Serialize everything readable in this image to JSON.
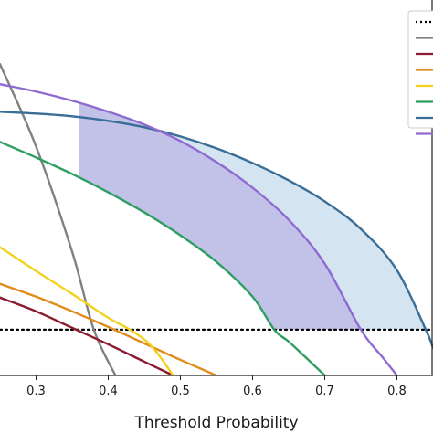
{
  "chart_data": {
    "type": "line",
    "title": "",
    "xlabel": "Threshold Probability",
    "ylabel": "",
    "xlim": [
      0.25,
      0.85
    ],
    "ylim": [
      -0.05,
      0.36
    ],
    "x_ticks": [
      0.3,
      0.4,
      0.5,
      0.6,
      0.7,
      0.8
    ],
    "x_tick_labels": [
      "0.3",
      "0.4",
      "0.5",
      "0.6",
      "0.7",
      "0.8"
    ],
    "grid": false,
    "legend": {
      "placement": "top-right",
      "entries": []
    },
    "series": [
      {
        "color": "#000000",
        "style": "dotted",
        "x": [
          0.25,
          0.85
        ],
        "y": [
          0.0,
          0.0
        ]
      },
      {
        "color": "#808080",
        "style": "solid",
        "x": [
          0.25,
          0.3,
          0.35,
          0.38,
          0.41
        ],
        "y": [
          0.29,
          0.2,
          0.085,
          0.0,
          -0.05
        ]
      },
      {
        "color": "#8b1a2f",
        "style": "solid",
        "x": [
          0.25,
          0.3,
          0.35,
          0.4,
          0.45,
          0.49
        ],
        "y": [
          0.035,
          0.02,
          0.002,
          -0.016,
          -0.035,
          -0.05
        ]
      },
      {
        "color": "#e08c1a",
        "style": "solid",
        "x": [
          0.25,
          0.3,
          0.35,
          0.4,
          0.45,
          0.5,
          0.55
        ],
        "y": [
          0.05,
          0.036,
          0.02,
          0.003,
          -0.015,
          -0.033,
          -0.05
        ]
      },
      {
        "color": "#f2d21e",
        "style": "solid",
        "x": [
          0.25,
          0.3,
          0.35,
          0.4,
          0.43,
          0.46,
          0.49
        ],
        "y": [
          0.09,
          0.064,
          0.039,
          0.013,
          0.0,
          -0.018,
          -0.05
        ]
      },
      {
        "color": "#2e9e62",
        "style": "solid",
        "x": [
          0.25,
          0.3,
          0.35,
          0.4,
          0.45,
          0.5,
          0.55,
          0.6,
          0.63,
          0.65,
          0.68,
          0.7
        ],
        "y": [
          0.205,
          0.188,
          0.17,
          0.15,
          0.128,
          0.103,
          0.074,
          0.036,
          0.0,
          -0.013,
          -0.035,
          -0.05
        ]
      },
      {
        "color": "#3a6e96",
        "style": "solid",
        "x": [
          0.25,
          0.3,
          0.35,
          0.4,
          0.45,
          0.5,
          0.55,
          0.6,
          0.65,
          0.7,
          0.75,
          0.8,
          0.84,
          0.85
        ],
        "y": [
          0.238,
          0.236,
          0.233,
          0.228,
          0.221,
          0.211,
          0.198,
          0.182,
          0.163,
          0.14,
          0.11,
          0.065,
          0.0,
          -0.02
        ]
      },
      {
        "color": "#8f6bd1",
        "style": "solid",
        "x": [
          0.25,
          0.3,
          0.35,
          0.4,
          0.45,
          0.5,
          0.55,
          0.6,
          0.65,
          0.7,
          0.75,
          0.78,
          0.8
        ],
        "y": [
          0.268,
          0.26,
          0.25,
          0.238,
          0.224,
          0.206,
          0.183,
          0.155,
          0.12,
          0.072,
          0.0,
          -0.03,
          -0.05
        ]
      }
    ]
  }
}
